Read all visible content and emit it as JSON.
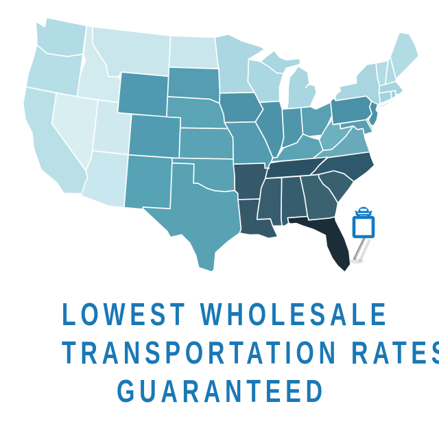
{
  "page": {
    "background": "#ffffff"
  },
  "headline": {
    "line1": "LOWEST WHOLESALE",
    "line2": "TRANSPORTATION RATES,",
    "line3": "GUARANTEED",
    "color": "#1a78b6"
  },
  "map": {
    "border_color": "#ffffff",
    "pin": {
      "icon": "car-icon",
      "accent_color": "#147ac2",
      "square_fill": "#ffffff",
      "stick_color": "#95989d",
      "stick_highlight": "#cdd0d4",
      "shadow_color": "#9aa0a4",
      "location": "Florida"
    },
    "states": [
      {
        "id": "WA",
        "name": "Washington",
        "fill": "#b2dce5"
      },
      {
        "id": "OR",
        "name": "Oregon",
        "fill": "#b5dee6"
      },
      {
        "id": "CA",
        "name": "California",
        "fill": "#b9e0e7"
      },
      {
        "id": "NV",
        "name": "Nevada",
        "fill": "#d9eef1"
      },
      {
        "id": "ID",
        "name": "Idaho",
        "fill": "#d2ebef"
      },
      {
        "id": "MT",
        "name": "Montana",
        "fill": "#c9e6ec"
      },
      {
        "id": "WY",
        "name": "Wyoming",
        "fill": "#4f9ab0"
      },
      {
        "id": "UT",
        "name": "Utah",
        "fill": "#d0e9ee"
      },
      {
        "id": "CO",
        "name": "Colorado",
        "fill": "#529cb1"
      },
      {
        "id": "AZ",
        "name": "Arizona",
        "fill": "#c9e7ee"
      },
      {
        "id": "NM",
        "name": "New Mexico",
        "fill": "#57a2b5"
      },
      {
        "id": "ND",
        "name": "North Dakota",
        "fill": "#c9e6ec"
      },
      {
        "id": "SD",
        "name": "South Dakota",
        "fill": "#549db2"
      },
      {
        "id": "NE",
        "name": "Nebraska",
        "fill": "#5ba4b6"
      },
      {
        "id": "KS",
        "name": "Kansas",
        "fill": "#5aa3b5"
      },
      {
        "id": "OK",
        "name": "Oklahoma",
        "fill": "#58a2b4"
      },
      {
        "id": "TX",
        "name": "Texas",
        "fill": "#58a2b4"
      },
      {
        "id": "MN",
        "name": "Minnesota",
        "fill": "#abd7e2"
      },
      {
        "id": "IA",
        "name": "Iowa",
        "fill": "#4c93a9"
      },
      {
        "id": "MO",
        "name": "Missouri",
        "fill": "#549bb0"
      },
      {
        "id": "WI",
        "name": "Wisconsin",
        "fill": "#abd7e2"
      },
      {
        "id": "MI",
        "name": "Michigan",
        "fill": "#a9d6e1"
      },
      {
        "id": "IL",
        "name": "Illinois",
        "fill": "#4c93a9"
      },
      {
        "id": "IN",
        "name": "Indiana",
        "fill": "#4f96ab"
      },
      {
        "id": "OH",
        "name": "Ohio",
        "fill": "#58a0b2"
      },
      {
        "id": "KY",
        "name": "Kentucky",
        "fill": "#5ca4b5"
      },
      {
        "id": "WV",
        "name": "West Virginia",
        "fill": "#6db0bf"
      },
      {
        "id": "PA",
        "name": "Pennsylvania",
        "fill": "#4a91a7"
      },
      {
        "id": "NY",
        "name": "New York",
        "fill": "#a8d5e0"
      },
      {
        "id": "NJ",
        "name": "New Jersey",
        "fill": "#4c92a8"
      },
      {
        "id": "VT",
        "name": "Vermont",
        "fill": "#b3dce4"
      },
      {
        "id": "NH",
        "name": "New Hampshire",
        "fill": "#b0dae3"
      },
      {
        "id": "ME",
        "name": "Maine",
        "fill": "#b2dce4"
      },
      {
        "id": "MA",
        "name": "Massachusetts",
        "fill": "#a6d3df"
      },
      {
        "id": "CT",
        "name": "Connecticut",
        "fill": "#a4d2de"
      },
      {
        "id": "RI",
        "name": "Rhode Island",
        "fill": "#a0d0dc"
      },
      {
        "id": "MD",
        "name": "Maryland",
        "fill": "#5b9fb1"
      },
      {
        "id": "DE",
        "name": "Delaware",
        "fill": "#5d9fb1"
      },
      {
        "id": "VA",
        "name": "Virginia",
        "fill": "#68aaba"
      },
      {
        "id": "NC",
        "name": "North Carolina",
        "fill": "#2f586c"
      },
      {
        "id": "SC",
        "name": "South Carolina",
        "fill": "#386071"
      },
      {
        "id": "GA",
        "name": "Georgia",
        "fill": "#3a6271"
      },
      {
        "id": "AL",
        "name": "Alabama",
        "fill": "#355d6e"
      },
      {
        "id": "MS",
        "name": "Mississippi",
        "fill": "#385d6e"
      },
      {
        "id": "TN",
        "name": "Tennessee",
        "fill": "#2b5264"
      },
      {
        "id": "AR",
        "name": "Arkansas",
        "fill": "#33596b"
      },
      {
        "id": "LA",
        "name": "Louisiana",
        "fill": "#36596a"
      },
      {
        "id": "FL",
        "name": "Florida",
        "fill": "#1b2d36"
      }
    ]
  }
}
